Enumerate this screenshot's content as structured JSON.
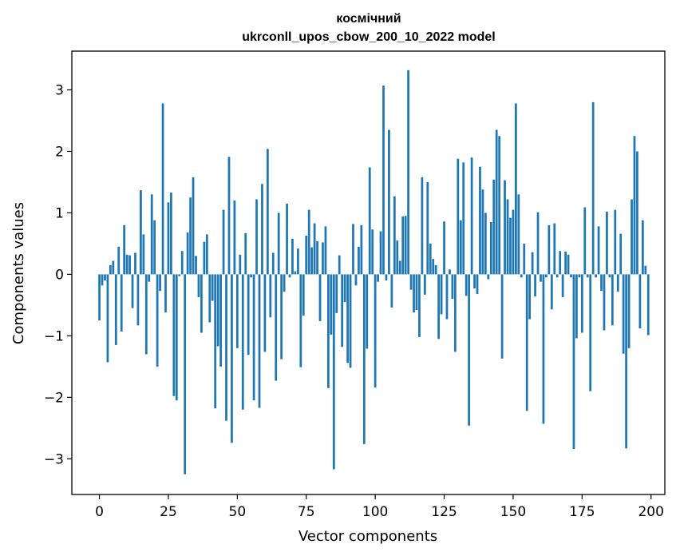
{
  "chart_data": {
    "type": "bar",
    "title": "космічний",
    "subtitle": "ukrconll_upos_cbow_200_10_2022 model",
    "xlabel": "Vector components",
    "ylabel": "Components values",
    "xlim": [
      -10,
      205
    ],
    "ylim": [
      -3.58,
      3.63
    ],
    "xticks": [
      0,
      25,
      50,
      75,
      100,
      125,
      150,
      175,
      200
    ],
    "yticks": [
      -3,
      -2,
      -1,
      0,
      1,
      2,
      3
    ],
    "grid": false,
    "bar_color": "#1f77b4",
    "x": [
      0,
      1,
      2,
      3,
      4,
      5,
      6,
      7,
      8,
      9,
      10,
      11,
      12,
      13,
      14,
      15,
      16,
      17,
      18,
      19,
      20,
      21,
      22,
      23,
      24,
      25,
      26,
      27,
      28,
      29,
      30,
      31,
      32,
      33,
      34,
      35,
      36,
      37,
      38,
      39,
      40,
      41,
      42,
      43,
      44,
      45,
      46,
      47,
      48,
      49,
      50,
      51,
      52,
      53,
      54,
      55,
      56,
      57,
      58,
      59,
      60,
      61,
      62,
      63,
      64,
      65,
      66,
      67,
      68,
      69,
      70,
      71,
      72,
      73,
      74,
      75,
      76,
      77,
      78,
      79,
      80,
      81,
      82,
      83,
      84,
      85,
      86,
      87,
      88,
      89,
      90,
      91,
      92,
      93,
      94,
      95,
      96,
      97,
      98,
      99,
      100,
      101,
      102,
      103,
      104,
      105,
      106,
      107,
      108,
      109,
      110,
      111,
      112,
      113,
      114,
      115,
      116,
      117,
      118,
      119,
      120,
      121,
      122,
      123,
      124,
      125,
      126,
      127,
      128,
      129,
      130,
      131,
      132,
      133,
      134,
      135,
      136,
      137,
      138,
      139,
      140,
      141,
      142,
      143,
      144,
      145,
      146,
      147,
      148,
      149,
      150,
      151,
      152,
      153,
      154,
      155,
      156,
      157,
      158,
      159,
      160,
      161,
      162,
      163,
      164,
      165,
      166,
      167,
      168,
      169,
      170,
      171,
      172,
      173,
      174,
      175,
      176,
      177,
      178,
      179,
      180,
      181,
      182,
      183,
      184,
      185,
      186,
      187,
      188,
      189,
      190,
      191,
      192,
      193,
      194,
      195,
      196,
      197,
      198,
      199
    ],
    "values": [
      -0.75,
      -0.18,
      -0.1,
      -1.43,
      0.15,
      0.22,
      -1.15,
      0.45,
      -0.93,
      0.8,
      0.32,
      0.31,
      -0.55,
      0.35,
      -0.83,
      1.37,
      0.65,
      -1.3,
      -0.12,
      1.3,
      0.88,
      -1.5,
      -0.27,
      2.78,
      -0.62,
      1.17,
      1.33,
      -1.98,
      -2.05,
      -0.03,
      0.38,
      -3.25,
      0.68,
      1.25,
      1.58,
      0.3,
      -0.37,
      -0.95,
      0.53,
      0.65,
      -0.78,
      -0.43,
      -2.18,
      -1.17,
      -1.5,
      1.05,
      -2.38,
      1.91,
      -2.74,
      1.2,
      -1.2,
      0.32,
      -2.2,
      0.67,
      -1.31,
      -0.05,
      -2.05,
      1.22,
      -2.17,
      1.47,
      -1.26,
      2.04,
      -0.7,
      0.35,
      -1.73,
      1.0,
      -1.38,
      -0.28,
      1.15,
      -0.05,
      0.58,
      0.05,
      0.42,
      -1.51,
      -0.67,
      0.63,
      1.05,
      0.44,
      0.83,
      0.54,
      -0.76,
      0.52,
      0.78,
      -1.85,
      -0.98,
      -3.17,
      -0.63,
      0.31,
      -1.18,
      -0.45,
      -1.44,
      -1.52,
      0.82,
      -0.18,
      0.45,
      0.8,
      -2.76,
      -1.21,
      1.74,
      0.73,
      -1.84,
      -0.12,
      0.7,
      3.07,
      -0.1,
      2.35,
      -0.54,
      1.27,
      0.55,
      0.22,
      0.94,
      0.95,
      3.32,
      -0.25,
      -0.62,
      -0.58,
      -1.02,
      1.58,
      -0.33,
      1.5,
      0.5,
      0.25,
      0.15,
      -1.05,
      -0.65,
      0.86,
      -0.73,
      0.08,
      -0.4,
      -1.26,
      1.88,
      0.88,
      1.82,
      -0.35,
      -2.46,
      1.9,
      -0.23,
      -0.32,
      1.75,
      1.38,
      1.0,
      -0.08,
      0.85,
      1.54,
      2.35,
      2.25,
      -1.37,
      1.53,
      1.22,
      0.92,
      1.05,
      2.78,
      1.3,
      -0.05,
      0.5,
      -2.22,
      -0.73,
      0.36,
      -0.36,
      1.01,
      -0.12,
      -2.43,
      -0.05,
      0.8,
      -0.57,
      0.83,
      -0.05,
      0.38,
      -0.37,
      0.37,
      0.32,
      -0.05,
      -2.84,
      -1.04,
      -0.05,
      -0.95,
      1.09,
      -0.05,
      -1.9,
      2.8,
      -0.05,
      0.78,
      -0.27,
      -0.91,
      1.02,
      -0.05,
      -0.83,
      1.05,
      -0.28,
      0.66,
      -1.29,
      -2.83,
      -1.2,
      1.22,
      2.25,
      2.0,
      -0.88,
      0.88,
      0.14,
      -0.99
    ]
  }
}
